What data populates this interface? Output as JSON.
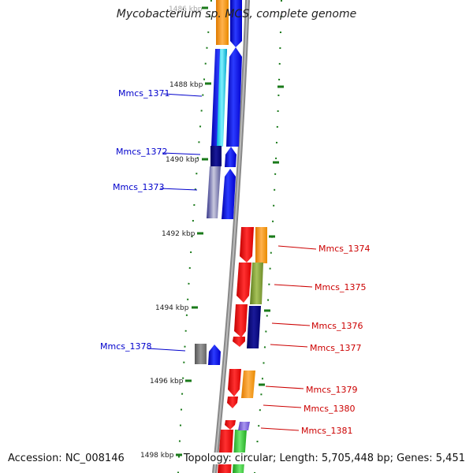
{
  "title": "Mycobacterium sp. MCS, complete genome",
  "accession_label": "Accession: NC_008146",
  "topology_label": "Topology: circular; Length: 5,705,448 bp; Genes: 5,451",
  "colors": {
    "forward_label": "#0000cc",
    "reverse_label": "#cc0000",
    "tick": "#1a7a1a",
    "backbone": "#888888"
  },
  "ticks": [
    {
      "label": "1486 kbp"
    },
    {
      "label": "1488 kbp"
    },
    {
      "label": "1490 kbp"
    },
    {
      "label": "1492 kbp"
    },
    {
      "label": "1494 kbp"
    },
    {
      "label": "1496 kbp"
    },
    {
      "label": "1498 kbp"
    }
  ],
  "genes_forward": [
    {
      "name": "Mmcs_1371"
    },
    {
      "name": "Mmcs_1372"
    },
    {
      "name": "Mmcs_1373"
    },
    {
      "name": "Mmcs_1378"
    }
  ],
  "genes_reverse": [
    {
      "name": "Mmcs_1374"
    },
    {
      "name": "Mmcs_1375"
    },
    {
      "name": "Mmcs_1376"
    },
    {
      "name": "Mmcs_1377"
    },
    {
      "name": "Mmcs_1379"
    },
    {
      "name": "Mmcs_1380"
    },
    {
      "name": "Mmcs_1381"
    }
  ]
}
